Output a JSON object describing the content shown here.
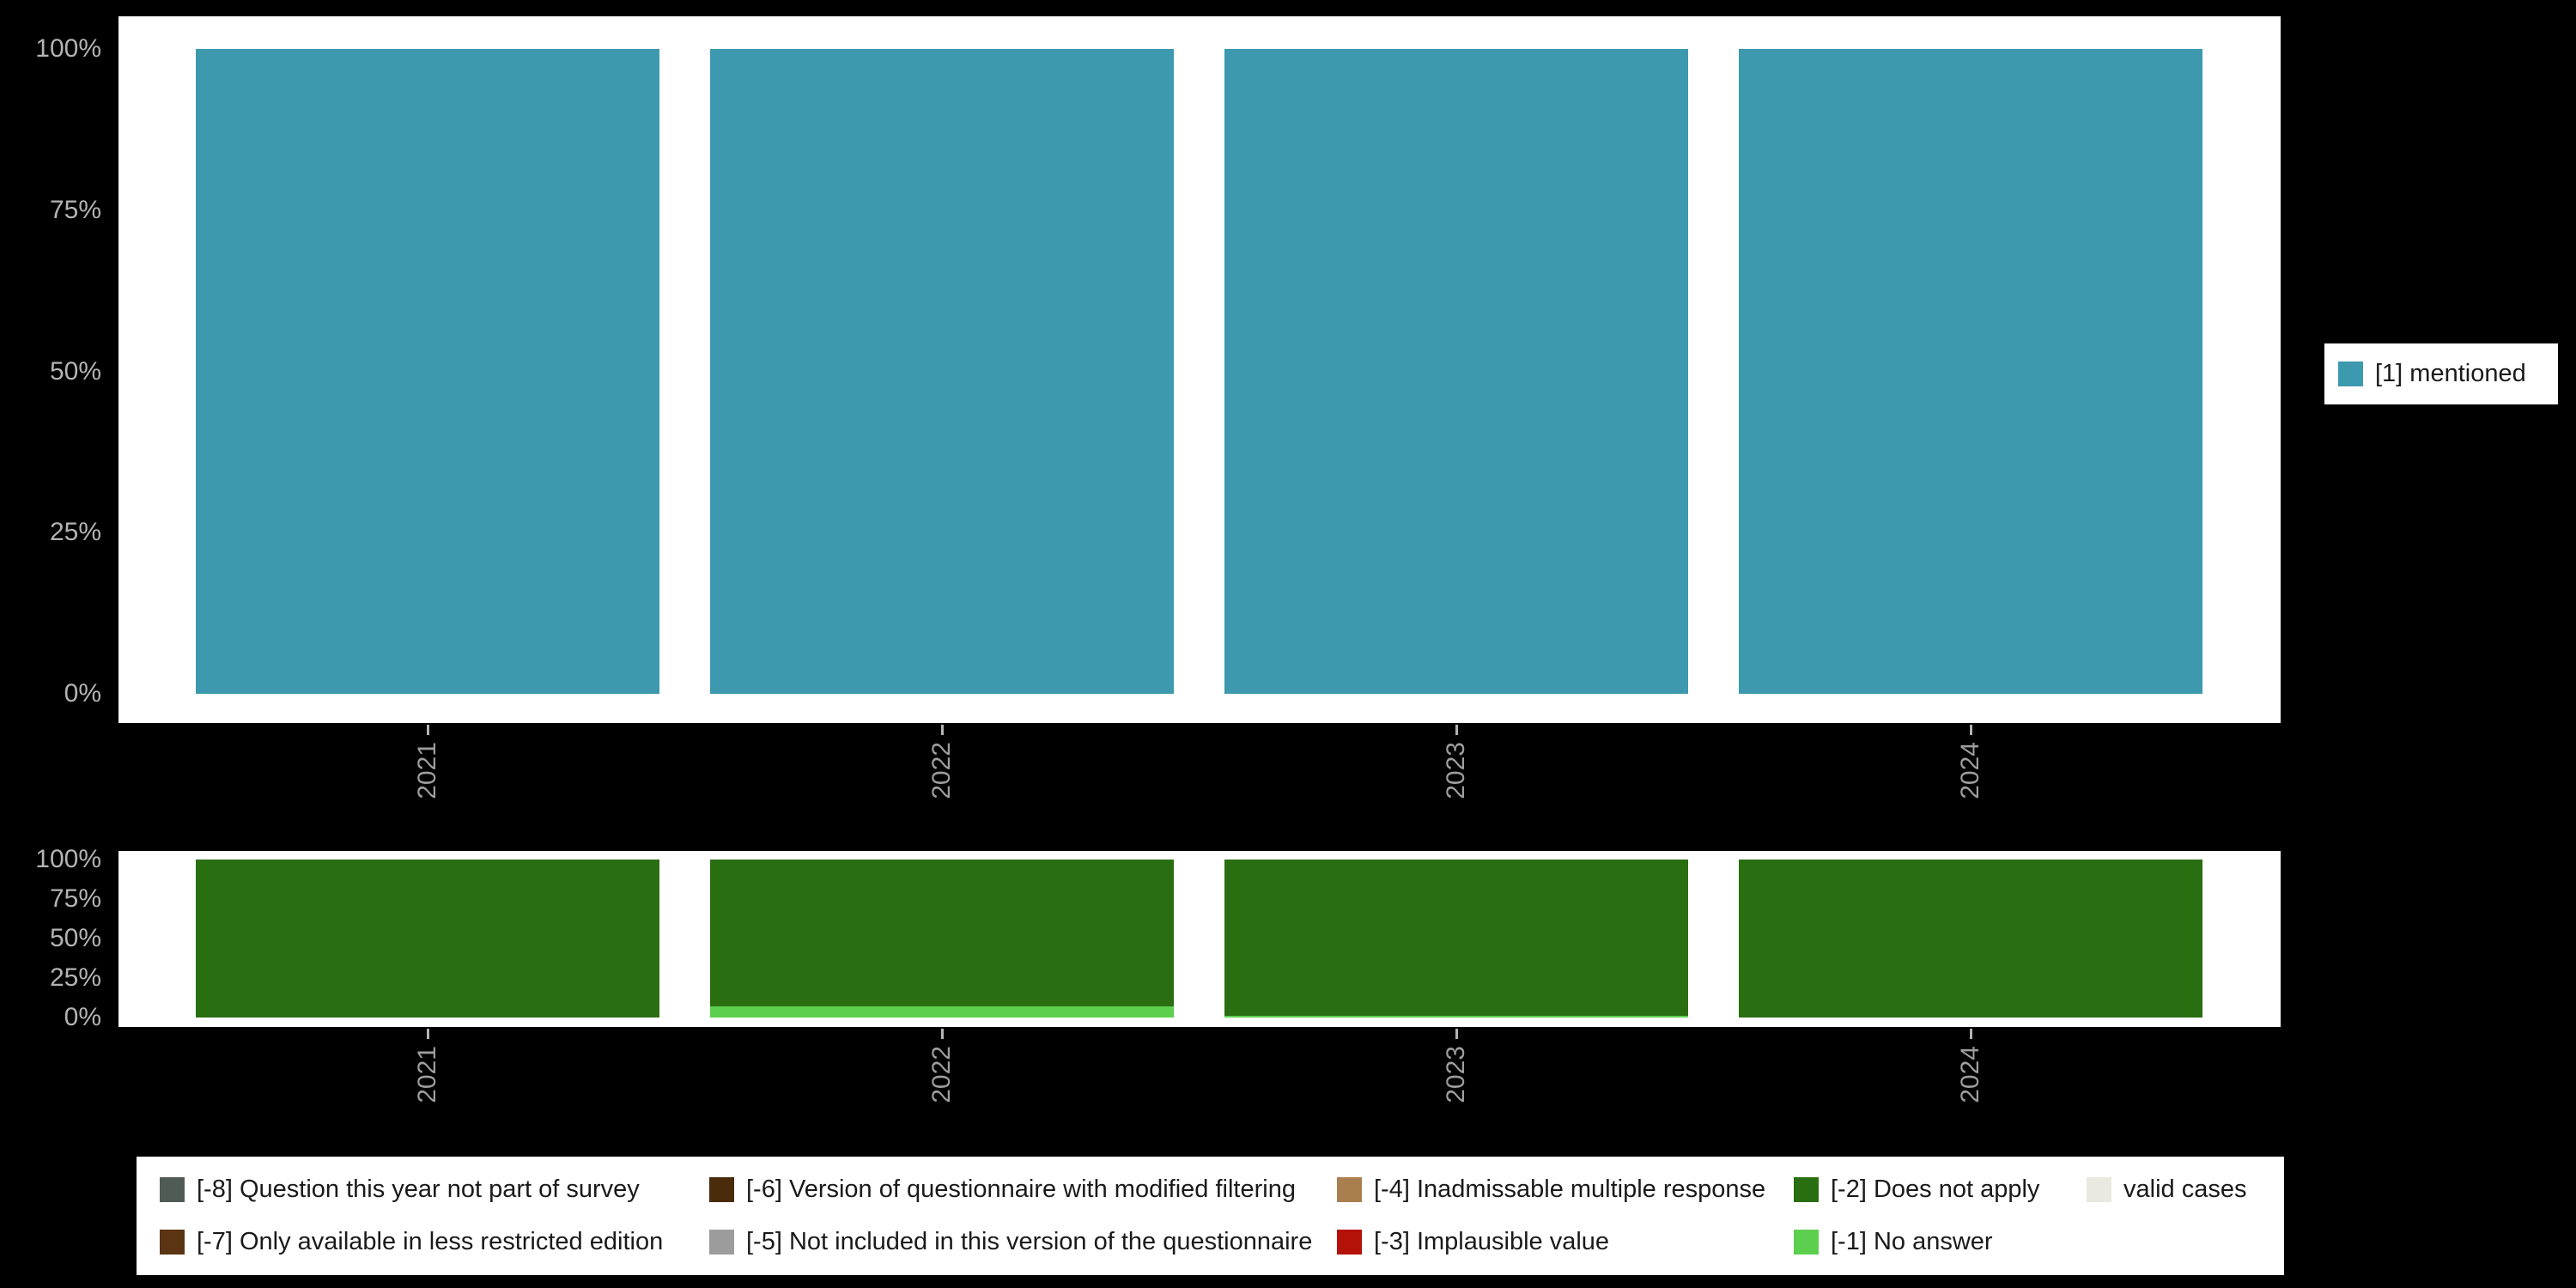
{
  "page": {
    "background": "#000000",
    "panel_background": "#ffffff",
    "axis_text_color": "#b3b3b3",
    "x_label_color": "#9e9e9e"
  },
  "chart_data": [
    {
      "type": "bar",
      "stacked": true,
      "title": "",
      "categories": [
        "2021",
        "2022",
        "2023",
        "2024"
      ],
      "series": [
        {
          "name": "[1] mentioned",
          "color": "#3d99ae",
          "values": [
            100,
            100,
            100,
            100
          ]
        }
      ],
      "xlabel": "",
      "ylabel": "",
      "ylim": [
        0,
        100
      ],
      "yticks": [
        "0%",
        "25%",
        "50%",
        "75%",
        "100%"
      ],
      "x_tick_rotation": 90,
      "grid": false,
      "legend_position": "right"
    },
    {
      "type": "bar",
      "stacked": true,
      "title": "",
      "categories": [
        "2021",
        "2022",
        "2023",
        "2024"
      ],
      "series": [
        {
          "name": "[-1] No answer",
          "color": "#5ccf4e",
          "values": [
            0,
            7,
            1,
            0
          ]
        },
        {
          "name": "[-2] Does not apply",
          "color": "#2a6e12",
          "values": [
            100,
            93,
            99,
            100
          ]
        }
      ],
      "xlabel": "",
      "ylabel": "",
      "ylim": [
        0,
        100
      ],
      "yticks": [
        "0%",
        "25%",
        "50%",
        "75%",
        "100%"
      ],
      "x_tick_rotation": 90,
      "grid": false,
      "legend_position": "bottom"
    }
  ],
  "legend_right": {
    "items": [
      {
        "label": "[1] mentioned",
        "color": "#3d99ae"
      }
    ]
  },
  "legend_bottom": {
    "rows": [
      [
        {
          "label": "[-8] Question this year not part of survey",
          "color": "#4f5b54"
        },
        {
          "label": "[-6] Version of questionnaire with modified filtering",
          "color": "#4a2c0d"
        },
        {
          "label": "[-4] Inadmissable multiple response",
          "color": "#a97f50"
        },
        {
          "label": "[-2] Does not apply",
          "color": "#2a6e12"
        },
        {
          "label": "valid cases",
          "color": "#e9e9e1"
        }
      ],
      [
        {
          "label": "[-7] Only available in less restricted edition",
          "color": "#5a3413"
        },
        {
          "label": "[-5] Not included in this version of the questionnaire",
          "color": "#9c9c9c"
        },
        {
          "label": "[-3] Implausible value",
          "color": "#b41109"
        },
        {
          "label": "[-1] No answer",
          "color": "#5ccf4e"
        }
      ]
    ]
  }
}
